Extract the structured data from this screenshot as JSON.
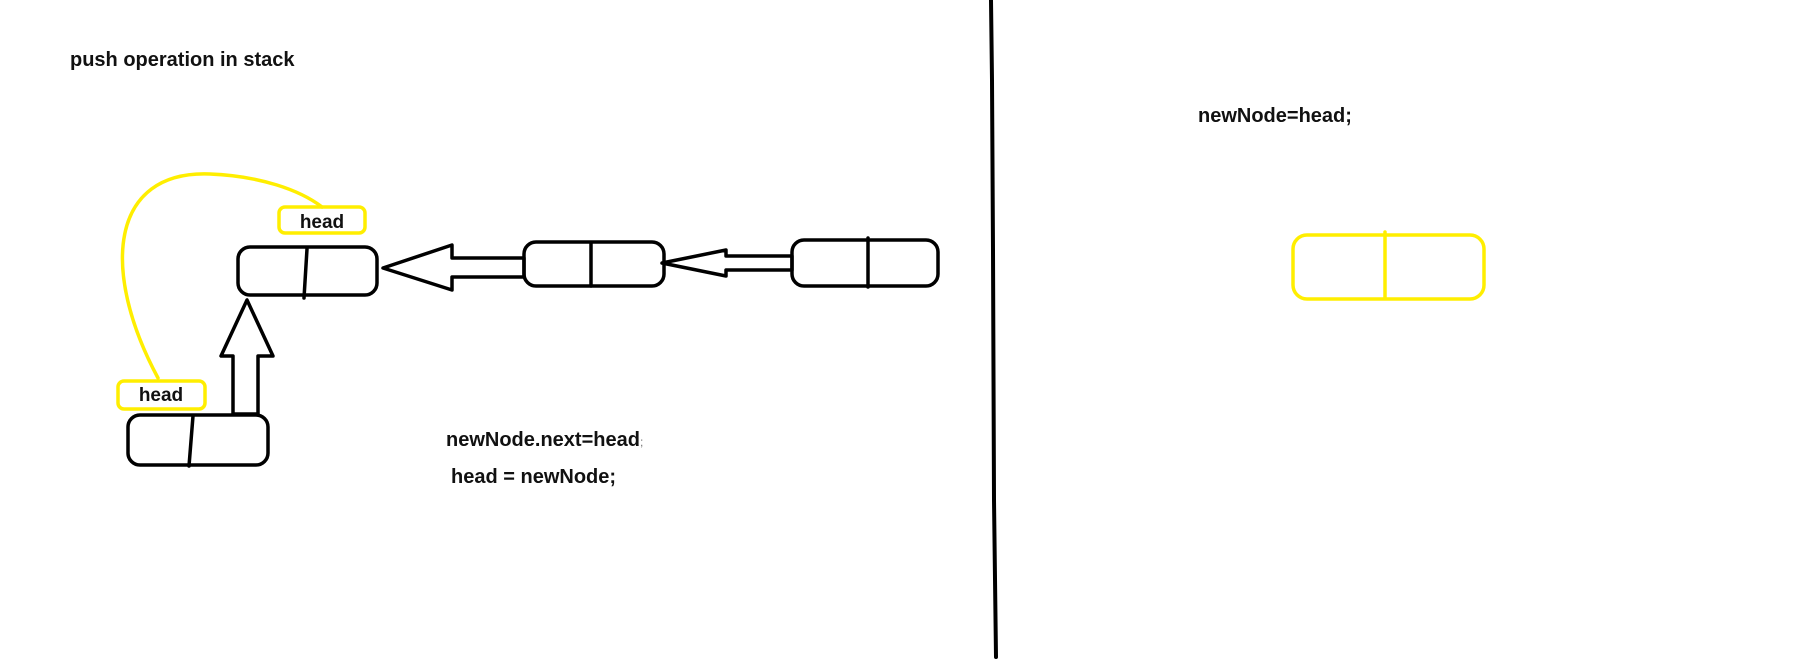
{
  "title": "push operation in stack",
  "code": {
    "line1": "newNode.next=head",
    "line1_trailing": ";",
    "line2": "head = newNode;",
    "right_line": "newNode=head;"
  },
  "labels": {
    "head_top": "head",
    "head_bottom": "head"
  },
  "colors": {
    "ink": "#000000",
    "highlight": "#ffee00",
    "background": "#ffffff"
  }
}
